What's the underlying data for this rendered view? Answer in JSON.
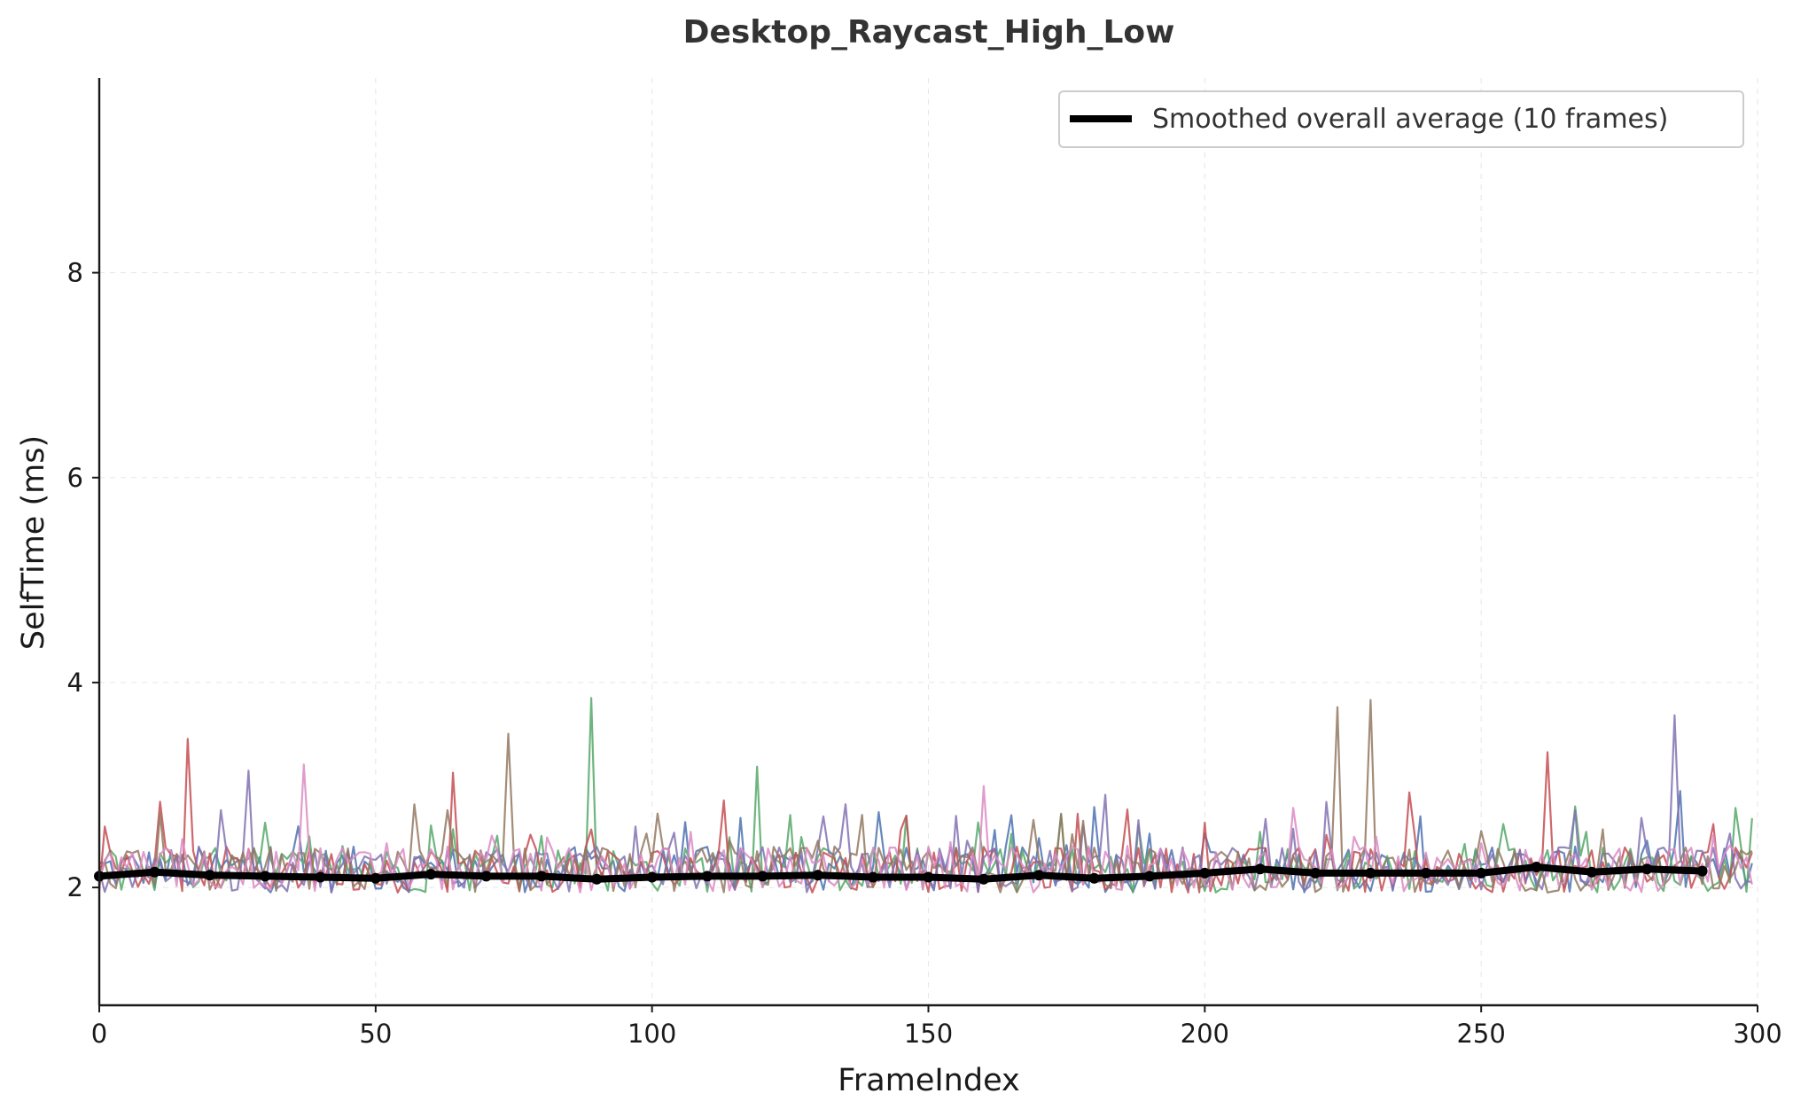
{
  "chart_data": {
    "type": "line",
    "title": "Desktop_Raycast_High_Low",
    "xlabel": "FrameIndex",
    "ylabel": "SelfTime (ms)",
    "xlim": [
      0,
      300
    ],
    "ylim": [
      0.85,
      9.9
    ],
    "x_ticks": [
      "0",
      "50",
      "100",
      "150",
      "200",
      "250",
      "300"
    ],
    "y_ticks": [
      "2",
      "4",
      "6",
      "8"
    ],
    "grid": true,
    "legend": {
      "placement": "top-right",
      "entries": [
        "Smoothed overall average (10 frames)"
      ]
    },
    "run_series_style": {
      "count": 6,
      "colors": [
        "#4c72b0",
        "#55a868",
        "#c44e52",
        "#8172b2",
        "#937860",
        "#da8bc3"
      ],
      "frames": 300,
      "typical_range_ms": [
        1.8,
        2.6
      ],
      "peak_ms": 3.85
    },
    "series": [
      {
        "name": "Smoothed overall average (10 frames)",
        "color": "#000000",
        "x": [
          0,
          10,
          20,
          30,
          40,
          50,
          60,
          70,
          80,
          90,
          100,
          110,
          120,
          130,
          140,
          150,
          160,
          170,
          180,
          190,
          200,
          210,
          220,
          230,
          240,
          250,
          260,
          270,
          280,
          290
        ],
        "values": [
          2.11,
          2.15,
          2.12,
          2.11,
          2.1,
          2.09,
          2.13,
          2.11,
          2.11,
          2.08,
          2.1,
          2.11,
          2.11,
          2.12,
          2.1,
          2.1,
          2.08,
          2.12,
          2.09,
          2.11,
          2.14,
          2.18,
          2.14,
          2.14,
          2.14,
          2.14,
          2.2,
          2.15,
          2.18,
          2.16
        ]
      }
    ]
  }
}
